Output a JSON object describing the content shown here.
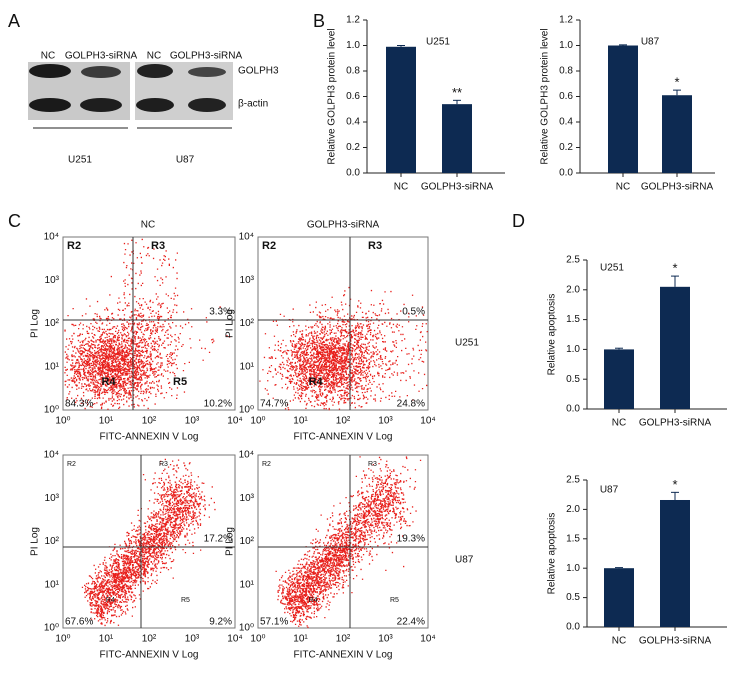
{
  "panel_labels": [
    "A",
    "B",
    "C",
    "D"
  ],
  "blot": {
    "groups": [
      {
        "cell_line": "U251",
        "lanes": [
          "NC",
          "GOLPH3-siRNA"
        ]
      },
      {
        "cell_line": "U87",
        "lanes": [
          "NC",
          "GOLPH3-siRNA"
        ]
      }
    ],
    "proteins": [
      "GOLPH3",
      "β-actin"
    ]
  },
  "flow": {
    "columns": [
      "NC",
      "GOLPH3-siRNA"
    ],
    "rows": [
      "U251",
      "U87"
    ],
    "x_label": "FITC-ANNEXIN V Log",
    "y_label": "PI Log",
    "ticks": [
      "10⁰",
      "10¹",
      "10²",
      "10³",
      "10⁴"
    ],
    "plots": [
      {
        "gates": [
          "R2",
          "R3",
          "R4",
          "R5"
        ],
        "upper_right": "3.3%",
        "lower_left": "84.3%",
        "lower_right": "10.2%"
      },
      {
        "gates": [
          "R2",
          "R3",
          "R4"
        ],
        "upper_right": "0.5%",
        "lower_left": "74.7%",
        "lower_right": "24.8%"
      },
      {
        "gates": [
          "R2",
          "R3",
          "R4",
          "R5"
        ],
        "upper_right": "17.2%",
        "lower_left": "67.6%",
        "lower_right": "9.2%"
      },
      {
        "gates": [
          "R2",
          "R3",
          "R4",
          "R5"
        ],
        "upper_right": "19.3%",
        "lower_left": "57.1%",
        "lower_right": "22.4%"
      }
    ]
  },
  "chart_data": [
    {
      "type": "bar",
      "title": "U251",
      "y_label": "Relative GOLPH3 protein level",
      "color": "#0d2a52",
      "categories": [
        "NC",
        "GOLPH3-siRNA"
      ],
      "values": [
        0.99,
        0.54
      ],
      "errors": [
        0.01,
        0.03
      ],
      "annotations": [
        {
          "category": "GOLPH3-siRNA",
          "text": "**"
        }
      ],
      "ylim": [
        0,
        1.2
      ],
      "yticks": [
        {
          "value": 0,
          "label": "0.0"
        },
        0.2,
        0.4,
        0.6,
        0.8,
        {
          "value": 1,
          "label": "1.0"
        },
        1.2
      ]
    },
    {
      "type": "bar",
      "title": "U87",
      "y_label": "Relative GOLPH3 protein level",
      "color": "#0d2a52",
      "categories": [
        "NC",
        "GOLPH3-siRNA"
      ],
      "values": [
        1.0,
        0.61
      ],
      "errors": [
        0.005,
        0.04
      ],
      "annotations": [
        {
          "category": "GOLPH3-siRNA",
          "text": "*"
        }
      ],
      "ylim": [
        0,
        1.2
      ],
      "yticks": [
        {
          "value": 0,
          "label": "0.0"
        },
        0.2,
        0.4,
        0.6,
        0.8,
        {
          "value": 1,
          "label": "1.0"
        },
        1.2
      ]
    },
    {
      "type": "bar",
      "title": "U251",
      "y_label": "Relative apoptosis",
      "color": "#0d2a52",
      "categories": [
        "NC",
        "GOLPH3-siRNA"
      ],
      "values": [
        1.0,
        2.05
      ],
      "errors": [
        0.02,
        0.18
      ],
      "annotations": [
        {
          "category": "GOLPH3-siRNA",
          "text": "*"
        }
      ],
      "ylim": [
        0,
        2.5
      ],
      "yticks": [
        {
          "value": 0,
          "label": "0.0"
        },
        0.5,
        {
          "value": 1,
          "label": "1.0"
        },
        1.5,
        {
          "value": 2,
          "label": "2.0"
        },
        2.5
      ]
    },
    {
      "type": "bar",
      "title": "U87",
      "y_label": "Relative  apoptosis",
      "color": "#0d2a52",
      "categories": [
        "NC",
        "GOLPH3-siRNA"
      ],
      "values": [
        1.0,
        2.16
      ],
      "errors": [
        0.01,
        0.13
      ],
      "annotations": [
        {
          "category": "GOLPH3-siRNA",
          "text": "*"
        }
      ],
      "ylim": [
        0,
        2.5
      ],
      "yticks": [
        {
          "value": 0,
          "label": "0.0"
        },
        0.5,
        {
          "value": 1,
          "label": "1.0"
        },
        1.5,
        {
          "value": 2,
          "label": "2.0"
        },
        2.5
      ]
    }
  ]
}
